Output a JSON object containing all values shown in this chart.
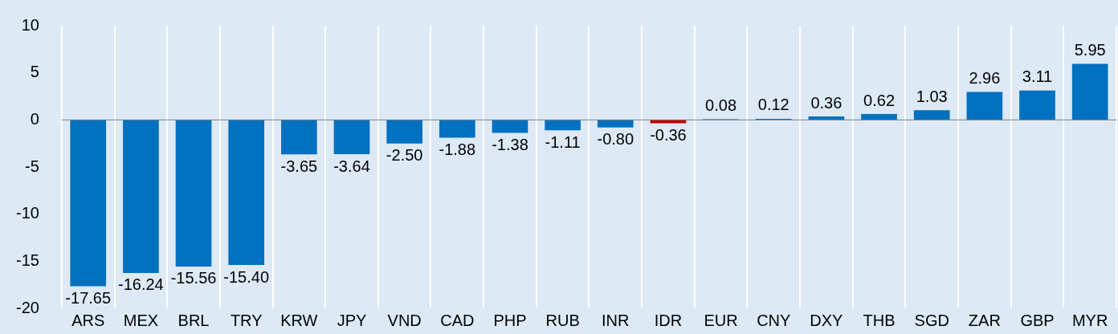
{
  "chart_data": {
    "type": "bar",
    "categories": [
      "ARS",
      "MEX",
      "BRL",
      "TRY",
      "KRW",
      "JPY",
      "VND",
      "CAD",
      "PHP",
      "RUB",
      "INR",
      "IDR",
      "EUR",
      "CNY",
      "DXY",
      "THB",
      "SGD",
      "ZAR",
      "GBP",
      "MYR"
    ],
    "values": [
      -17.65,
      -16.24,
      -15.56,
      -15.4,
      -3.65,
      -3.64,
      -2.5,
      -1.88,
      -1.38,
      -1.11,
      -0.8,
      -0.36,
      0.08,
      0.12,
      0.36,
      0.62,
      1.03,
      2.96,
      3.11,
      5.95
    ],
    "colors": [
      "#0070c0",
      "#0070c0",
      "#0070c0",
      "#0070c0",
      "#0070c0",
      "#0070c0",
      "#0070c0",
      "#0070c0",
      "#0070c0",
      "#0070c0",
      "#0070c0",
      "#c00000",
      "#0070c0",
      "#0070c0",
      "#0070c0",
      "#0070c0",
      "#0070c0",
      "#0070c0",
      "#0070c0",
      "#0070c0"
    ],
    "value_labels": [
      "-17.65",
      "-16.24",
      "-15.56",
      "-15.40",
      "-3.65",
      "-3.64",
      "-2.50",
      "-1.88",
      "-1.38",
      "-1.11",
      "-0.80",
      "-0.36",
      "0.08",
      "0.12",
      "0.36",
      "0.62",
      "1.03",
      "2.96",
      "3.11",
      "5.95"
    ],
    "ylim": [
      -20,
      10
    ],
    "yticks": [
      -20,
      -15,
      -10,
      -5,
      0,
      5,
      10
    ],
    "grid": "x",
    "legend": false
  }
}
